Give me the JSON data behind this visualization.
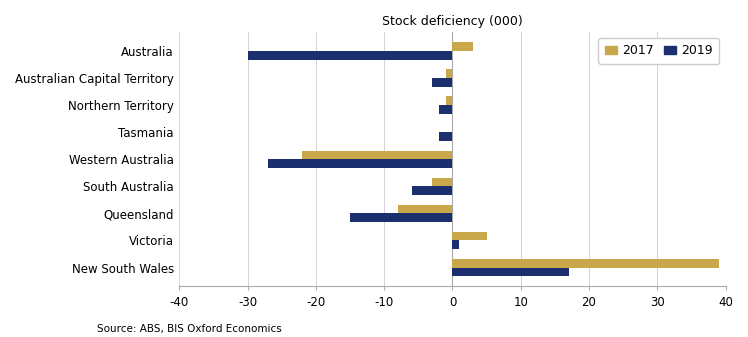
{
  "categories": [
    "New South Wales",
    "Victoria",
    "Queensland",
    "South Australia",
    "Western Australia",
    "Tasmania",
    "Northern Territory",
    "Australian Capital Territory",
    "Australia"
  ],
  "values_2017": [
    39,
    5,
    -8,
    -3,
    -22,
    0,
    -1,
    -1,
    3
  ],
  "values_2019": [
    17,
    1,
    -15,
    -6,
    -27,
    -2,
    -2,
    -3,
    -30
  ],
  "color_2017": "#C9A84C",
  "color_2019": "#1B2F6E",
  "title": "Stock deficiency (000)",
  "xlim": [
    -40,
    40
  ],
  "xticks": [
    -40,
    -30,
    -20,
    -10,
    0,
    10,
    20,
    30,
    40
  ],
  "source": "Source: ABS, BIS Oxford Economics",
  "legend_labels": [
    "2017",
    "2019"
  ],
  "bar_height": 0.32,
  "figsize": [
    7.48,
    3.37
  ],
  "dpi": 100
}
